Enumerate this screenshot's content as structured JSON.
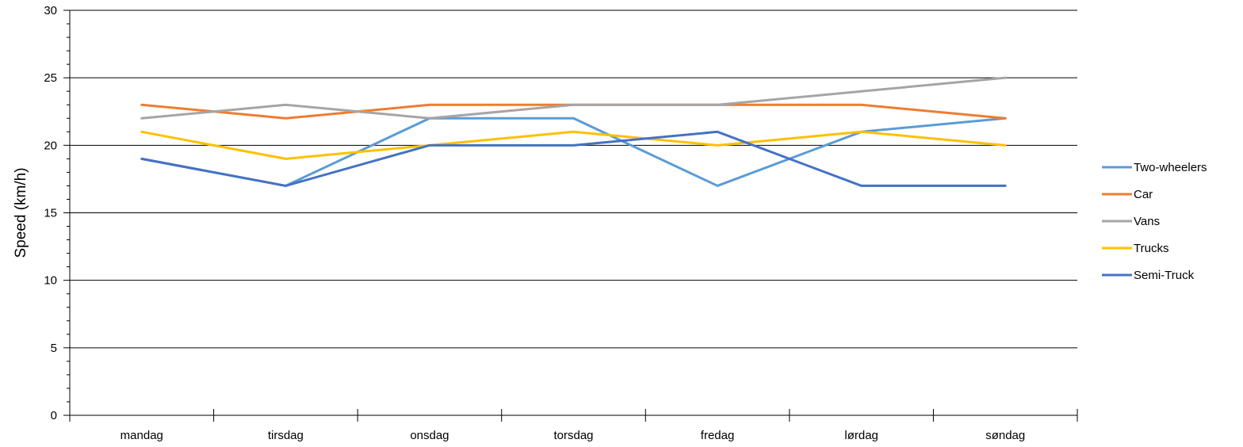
{
  "chart_data": {
    "type": "line",
    "title": "",
    "xlabel": "",
    "ylabel": "Speed (km/h)",
    "ylim": [
      0,
      30
    ],
    "y_major_step": 5,
    "y_minor_step": 1,
    "grid": "horizontal major",
    "legend_position": "right",
    "categories": [
      "mandag",
      "tirsdag",
      "onsdag",
      "torsdag",
      "fredag",
      "lørdag",
      "søndag"
    ],
    "series": [
      {
        "name": "Two-wheelers",
        "color": "#5B9BD5",
        "values": [
          19,
          17,
          22,
          22,
          17,
          21,
          22
        ]
      },
      {
        "name": "Car",
        "color": "#ED7D31",
        "values": [
          23,
          22,
          23,
          23,
          23,
          23,
          22
        ]
      },
      {
        "name": "Vans",
        "color": "#A5A5A5",
        "values": [
          22,
          23,
          22,
          23,
          23,
          24,
          25
        ]
      },
      {
        "name": "Trucks",
        "color": "#FFC000",
        "values": [
          21,
          19,
          20,
          21,
          20,
          21,
          20
        ]
      },
      {
        "name": "Semi-Truck",
        "color": "#4472C4",
        "values": [
          19,
          17,
          20,
          20,
          21,
          17,
          17
        ]
      }
    ]
  }
}
